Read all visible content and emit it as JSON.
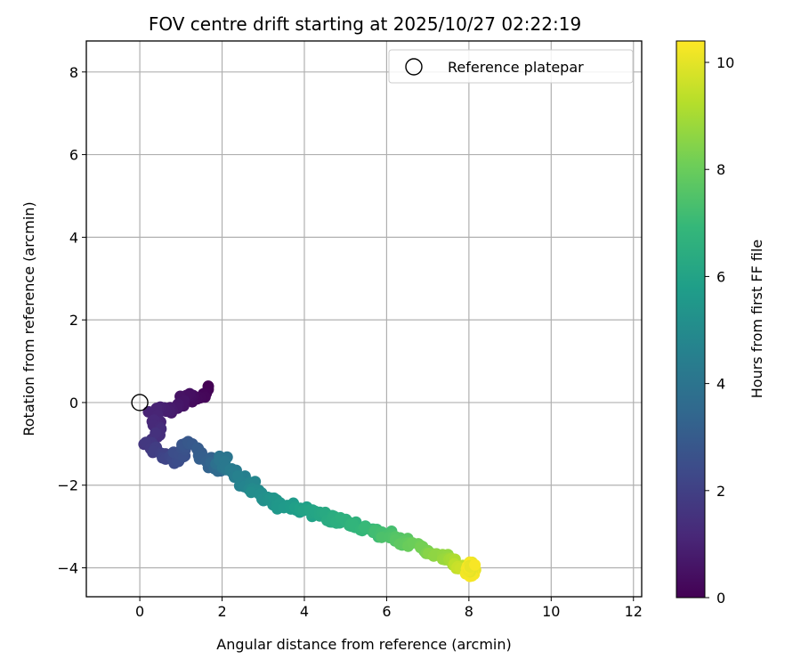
{
  "chart_data": {
    "type": "scatter",
    "title": "FOV centre drift starting at 2025/10/27 02:22:19",
    "xlabel": "Angular distance from reference (arcmin)",
    "ylabel": "Rotation from reference (arcmin)",
    "xlim": [
      -1.3,
      12.2
    ],
    "ylim": [
      -4.7,
      8.75
    ],
    "xticks": [
      0,
      2,
      4,
      6,
      8,
      10,
      12
    ],
    "yticks": [
      -4,
      -2,
      0,
      2,
      4,
      6,
      8
    ],
    "grid": true,
    "legend": {
      "placement": "top-right",
      "entries": [
        "Reference platepar"
      ]
    },
    "reference_point": {
      "x": 0,
      "y": 0
    },
    "colorbar": {
      "label": "Hours from first FF file",
      "colormap": "viridis",
      "range": [
        0,
        10.4
      ],
      "ticks": [
        0,
        2,
        4,
        6,
        8,
        10
      ]
    },
    "colormap_stops": [
      "#440154",
      "#482878",
      "#3e4989",
      "#31688e",
      "#26828e",
      "#1f9e89",
      "#35b779",
      "#6ece58",
      "#b5de2b",
      "#fde725"
    ],
    "path": [
      {
        "x": 1.65,
        "y": 0.3,
        "t": 0.0
      },
      {
        "x": 1.45,
        "y": 0.1,
        "t": 0.2
      },
      {
        "x": 1.2,
        "y": 0.15,
        "t": 0.4
      },
      {
        "x": 0.85,
        "y": -0.15,
        "t": 0.7
      },
      {
        "x": 0.35,
        "y": -0.2,
        "t": 1.0
      },
      {
        "x": 0.4,
        "y": -0.7,
        "t": 1.3
      },
      {
        "x": 0.25,
        "y": -0.95,
        "t": 1.6
      },
      {
        "x": 0.5,
        "y": -1.25,
        "t": 2.0
      },
      {
        "x": 0.9,
        "y": -1.4,
        "t": 2.4
      },
      {
        "x": 1.2,
        "y": -1.0,
        "t": 2.8
      },
      {
        "x": 1.6,
        "y": -1.4,
        "t": 3.2
      },
      {
        "x": 1.95,
        "y": -1.6,
        "t": 3.6
      },
      {
        "x": 2.0,
        "y": -1.35,
        "t": 4.0
      },
      {
        "x": 2.5,
        "y": -1.9,
        "t": 4.6
      },
      {
        "x": 3.0,
        "y": -2.3,
        "t": 5.2
      },
      {
        "x": 3.7,
        "y": -2.55,
        "t": 5.7
      },
      {
        "x": 4.3,
        "y": -2.65,
        "t": 6.1
      },
      {
        "x": 5.0,
        "y": -2.9,
        "t": 6.6
      },
      {
        "x": 5.6,
        "y": -3.1,
        "t": 7.0
      },
      {
        "x": 6.3,
        "y": -3.3,
        "t": 7.6
      },
      {
        "x": 7.0,
        "y": -3.6,
        "t": 8.3
      },
      {
        "x": 7.6,
        "y": -3.85,
        "t": 9.0
      },
      {
        "x": 8.0,
        "y": -4.05,
        "t": 9.8
      },
      {
        "x": 8.05,
        "y": -4.1,
        "t": 10.4
      }
    ]
  }
}
